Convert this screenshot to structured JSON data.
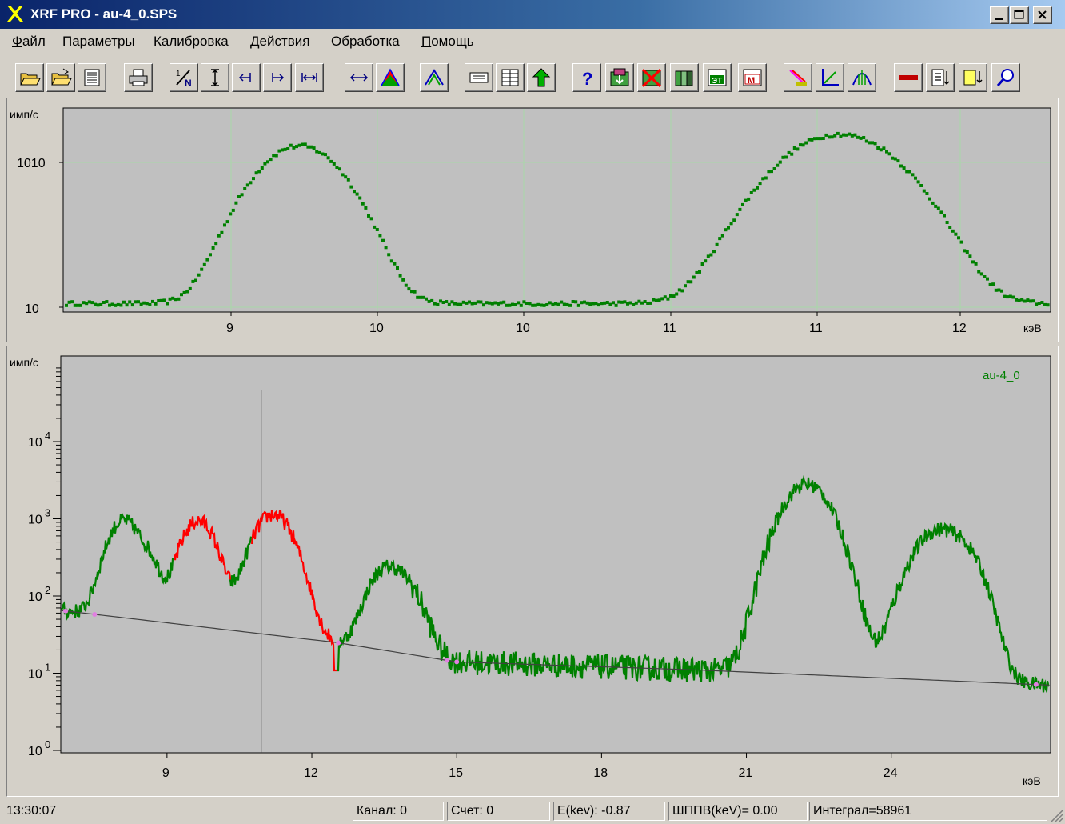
{
  "window": {
    "title": "XRF PRO - au-4_0.SPS"
  },
  "menu": [
    {
      "label": "Файл",
      "underline": true
    },
    {
      "label": "Параметры",
      "underline": false
    },
    {
      "label": "Калибровка",
      "underline": false
    },
    {
      "label": "Действия",
      "underline": false
    },
    {
      "label": "Обработка",
      "underline": false
    },
    {
      "label": "Помощь",
      "underline": true
    }
  ],
  "toolbar_icons": [
    "open-folder-icon",
    "open-file-icon",
    "view-data-icon",
    "print-icon",
    "normalize-icon",
    "vertical-scale-icon",
    "shift-left-icon",
    "shift-right-icon",
    "expand-range-icon",
    "horizontal-range-icon",
    "peak-fill-icon",
    "peak-icon",
    "channel-display-icon",
    "table-icon",
    "background-up-icon",
    "help-icon",
    "library-icon",
    "delete-library-icon",
    "library-list-icon",
    "standard-icon",
    "method-icon",
    "spectrum-color-icon",
    "axis-icon",
    "peak-fit-icon",
    "marker-icon",
    "sort-icon",
    "export-icon",
    "zoom-icon"
  ],
  "top_chart": {
    "ylabel": "имп/с",
    "xlabel": "кэВ",
    "y_ticks": [
      "1010",
      "10"
    ],
    "x_ticks": [
      "9",
      "10",
      "10",
      "11",
      "11",
      "12"
    ]
  },
  "bottom_chart": {
    "ylabel": "имп/с",
    "xlabel": "кэВ",
    "series_name": "au-4_0",
    "y_ticks": [
      {
        "base": "10",
        "exp": "4"
      },
      {
        "base": "10",
        "exp": "3"
      },
      {
        "base": "10",
        "exp": "2"
      },
      {
        "base": "10",
        "exp": "1"
      },
      {
        "base": "10",
        "exp": "0"
      }
    ],
    "x_ticks": [
      "9",
      "12",
      "15",
      "18",
      "21",
      "24"
    ]
  },
  "chart_data": [
    {
      "type": "scatter",
      "title": "",
      "xlabel": "кэВ",
      "ylabel": "имп/с",
      "y_scale": "log",
      "ylim": [
        10,
        2000
      ],
      "xlim": [
        8.05,
        12.55
      ],
      "series": [
        {
          "color": "#008000",
          "peaks": [
            {
              "center": 9.12,
              "height": 800,
              "width": 0.16
            },
            {
              "center": 11.58,
              "height": 1100,
              "width": 0.22
            }
          ],
          "baseline": 11
        }
      ]
    },
    {
      "type": "line",
      "title": "",
      "xlabel": "кэВ",
      "ylabel": "имп/с",
      "y_scale": "log",
      "ylim": [
        1,
        100000
      ],
      "xlim": [
        6.8,
        27.3
      ],
      "cursor_x": 10.95,
      "series": [
        {
          "name": "au-4_0",
          "color": "#008000",
          "peaks": [
            {
              "center": 8.1,
              "height": 900,
              "width": 0.28
            },
            {
              "center": 8.65,
              "height": 200,
              "width": 0.2
            },
            {
              "center": 9.65,
              "height": 900,
              "width": 0.3
            },
            {
              "center": 11.2,
              "height": 1100,
              "width": 0.35
            },
            {
              "center": 13.5,
              "height": 180,
              "width": 0.3
            },
            {
              "center": 13.95,
              "height": 100,
              "width": 0.3
            },
            {
              "center": 22.25,
              "height": 2800,
              "width": 0.42
            },
            {
              "center": 25.0,
              "height": 700,
              "width": 0.45
            },
            {
              "center": 25.6,
              "height": 150,
              "width": 0.3
            }
          ]
        },
        {
          "name": "",
          "color": "#ff0000",
          "segments": [
            [
              9.15,
              10.3
            ],
            [
              10.75,
              12.5
            ]
          ]
        },
        {
          "name": "",
          "color": "#404040",
          "role": "background",
          "points": [
            [
              6.8,
              65
            ],
            [
              12.5,
              25
            ],
            [
              15.0,
              14
            ],
            [
              20.0,
              11
            ],
            [
              27.3,
              7
            ]
          ]
        }
      ]
    }
  ],
  "status": {
    "time": "13:30:07",
    "channel": "Канал:  0",
    "count": "Счет:     0",
    "energy": "E(kev):  -0.87",
    "fwhm": "ШППВ(keV)=  0.00",
    "integral": "Интеграл=58961"
  },
  "colors": {
    "plot_bg": "#c0c0c0",
    "spectrum": "#008000",
    "region": "#ff0000",
    "background_line": "#404040",
    "grid": "#a8d8a8"
  }
}
